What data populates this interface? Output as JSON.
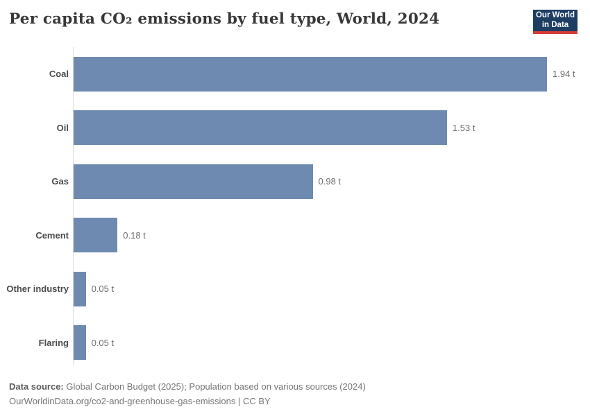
{
  "header": {
    "title": "Per capita CO₂ emissions by fuel type, World, 2024",
    "logo": {
      "line1": "Our World",
      "line2": "in Data"
    }
  },
  "chart_data": {
    "type": "bar",
    "orientation": "horizontal",
    "title": "Per capita CO₂ emissions by fuel type, World, 2024",
    "categories": [
      "Coal",
      "Oil",
      "Gas",
      "Cement",
      "Other industry",
      "Flaring"
    ],
    "values": [
      1.94,
      1.53,
      0.98,
      0.18,
      0.05,
      0.05
    ],
    "value_labels": [
      "1.94 t",
      "1.53 t",
      "0.98 t",
      "0.18 t",
      "0.05 t",
      "0.05 t"
    ],
    "unit": "t",
    "xlabel": "",
    "ylabel": "",
    "xlim": [
      0,
      1.94
    ],
    "grid": false,
    "legend": "none",
    "bar_color": "#6e8ab0"
  },
  "footer": {
    "datasource_label": "Data source:",
    "datasource_text": " Global Carbon Budget (2025); Population based on various sources (2024)",
    "license_line": "OurWorldinData.org/co2-and-greenhouse-gas-emissions | CC BY"
  },
  "colors": {
    "bar": "#6e8ab0",
    "axis_line": "#dcdcdc",
    "title_text": "#383838",
    "category_label": "#4a4a4a",
    "value_label": "#6e6e6e",
    "footer_text": "#757575",
    "logo_background": "#1d3d63",
    "logo_accent": "#d73c34",
    "background": "#ffffff"
  }
}
